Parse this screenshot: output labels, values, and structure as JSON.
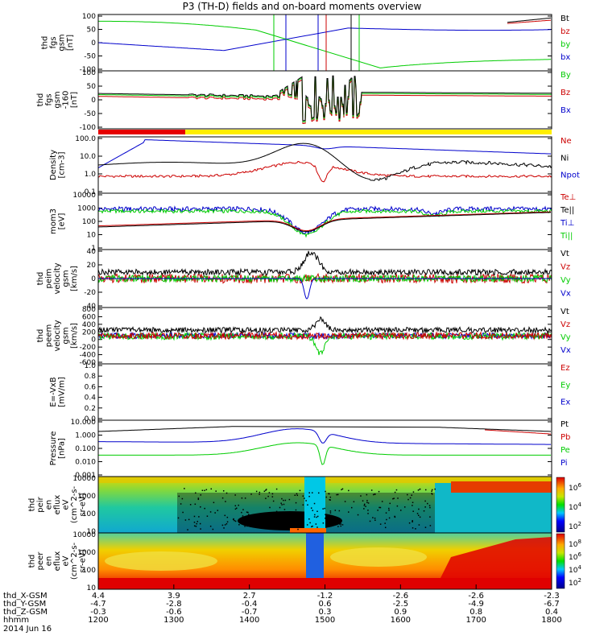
{
  "title": "P3 (TH-D) fields and on-board moments overview",
  "chart_data": {
    "type": "line",
    "panels": [
      {
        "id": "fgs",
        "ylabel": [
          "thd",
          "fgs",
          "gsm",
          "[nT]"
        ],
        "yticks": [
          "100",
          "50",
          "0",
          "-50",
          "-100"
        ],
        "legend": [
          {
            "name": "Bt",
            "color": "#000000"
          },
          {
            "name": "bz",
            "color": "#cc0000"
          },
          {
            "name": "by",
            "color": "#00cc00"
          },
          {
            "name": "bx",
            "color": "#0000cc"
          }
        ]
      },
      {
        "id": "fgs-scaled",
        "ylabel": [
          "thd",
          "fgs",
          "gsm",
          "-160",
          "[nT]"
        ],
        "yticks": [
          "100",
          "50",
          "0",
          "-50",
          "-100"
        ],
        "legend": [
          {
            "name": "By",
            "color": "#00cc00"
          },
          {
            "name": "Bz",
            "color": "#cc0000"
          },
          {
            "name": "Bx",
            "color": "#0000cc"
          }
        ]
      },
      {
        "id": "density",
        "ylabel": [
          "Density",
          "[cm-3]"
        ],
        "yticks": [
          "100.0",
          "10.0",
          "1.0",
          "0.1"
        ],
        "legend": [
          {
            "name": "Ne",
            "color": "#cc0000"
          },
          {
            "name": "Ni",
            "color": "#000000"
          },
          {
            "name": "Npot",
            "color": "#0000cc"
          }
        ]
      },
      {
        "id": "temperature",
        "ylabel": [
          "mom3",
          "[eV]"
        ],
        "yticks": [
          "10000",
          "1000",
          "100",
          "10",
          "1"
        ],
        "legend": [
          {
            "name": "Te⊥",
            "color": "#cc0000"
          },
          {
            "name": "Te||",
            "color": "#000000"
          },
          {
            "name": "Ti⊥",
            "color": "#0000cc"
          },
          {
            "name": "Ti||",
            "color": "#00cc00"
          }
        ]
      },
      {
        "id": "ion-velocity",
        "ylabel": [
          "thd",
          "peim",
          "velocity",
          "gsm",
          "[km/s]"
        ],
        "yticks": [
          "40",
          "20",
          "0",
          "-20",
          "-40"
        ],
        "legend": [
          {
            "name": "Vt",
            "color": "#000000"
          },
          {
            "name": "Vz",
            "color": "#cc0000"
          },
          {
            "name": "Vy",
            "color": "#00cc00"
          },
          {
            "name": "Vx",
            "color": "#0000cc"
          }
        ]
      },
      {
        "id": "electron-velocity",
        "ylabel": [
          "thd",
          "peem",
          "velocity",
          "gsm",
          "[km/s]"
        ],
        "yticks": [
          "800",
          "600",
          "400",
          "200",
          "0",
          "-200",
          "-400",
          "-600"
        ],
        "legend": [
          {
            "name": "Vt",
            "color": "#000000"
          },
          {
            "name": "Vz",
            "color": "#cc0000"
          },
          {
            "name": "Vy",
            "color": "#00cc00"
          },
          {
            "name": "Vx",
            "color": "#0000cc"
          }
        ]
      },
      {
        "id": "efield",
        "ylabel": [
          "E=-VxB",
          "[mV/m]"
        ],
        "yticks": [
          "1.0",
          "0.8",
          "0.6",
          "0.4",
          "0.2",
          "0.0"
        ],
        "legend": [
          {
            "name": "Ez",
            "color": "#cc0000"
          },
          {
            "name": "Ey",
            "color": "#00cc00"
          },
          {
            "name": "Ex",
            "color": "#0000cc"
          }
        ]
      },
      {
        "id": "pressure",
        "ylabel": [
          "Pressure",
          "[nPa]"
        ],
        "yticks": [
          "10.000",
          "1.000",
          "0.100",
          "0.010",
          "0.001"
        ],
        "legend": [
          {
            "name": "Pt",
            "color": "#000000"
          },
          {
            "name": "Pb",
            "color": "#cc0000"
          },
          {
            "name": "Pe",
            "color": "#00cc00"
          },
          {
            "name": "Pi",
            "color": "#0000cc"
          }
        ]
      },
      {
        "id": "ion-spectrogram",
        "ylabel": [
          "thd",
          "peir",
          "en",
          "eflux",
          "eV",
          "(cm^2-s-",
          "sr-eV)"
        ],
        "yticks": [
          "10000",
          "1000",
          "100",
          "10"
        ],
        "colorbar": [
          "10^6",
          "10^4",
          "10^2"
        ]
      },
      {
        "id": "electron-spectrogram",
        "ylabel": [
          "thd",
          "peer",
          "en",
          "eflux",
          "eV",
          "(cm^2-s-",
          "sr-eV)"
        ],
        "yticks": [
          "10000",
          "1000",
          "100",
          "10"
        ],
        "colorbar": [
          "10^8",
          "10^6",
          "10^4",
          "10^2"
        ]
      }
    ],
    "x_axis": {
      "rows": [
        {
          "label": "thd_X-GSM",
          "values": [
            "4.4",
            "3.9",
            "2.7",
            "-1.2",
            "-2.6",
            "-2.6",
            "-2.3"
          ]
        },
        {
          "label": "thd_Y-GSM",
          "values": [
            "-4.7",
            "-2.8",
            "-0.4",
            "0.6",
            "-2.5",
            "-4.9",
            "-6.7"
          ]
        },
        {
          "label": "thd_Z-GSM",
          "values": [
            "-0.3",
            "-0.6",
            "-0.7",
            "0.3",
            "0.9",
            "0.8",
            "0.4"
          ]
        },
        {
          "label": "hhmm",
          "values": [
            "1200",
            "1300",
            "1400",
            "1500",
            "1600",
            "1700",
            "1800"
          ]
        }
      ],
      "date": "2014 Jun 16"
    }
  }
}
